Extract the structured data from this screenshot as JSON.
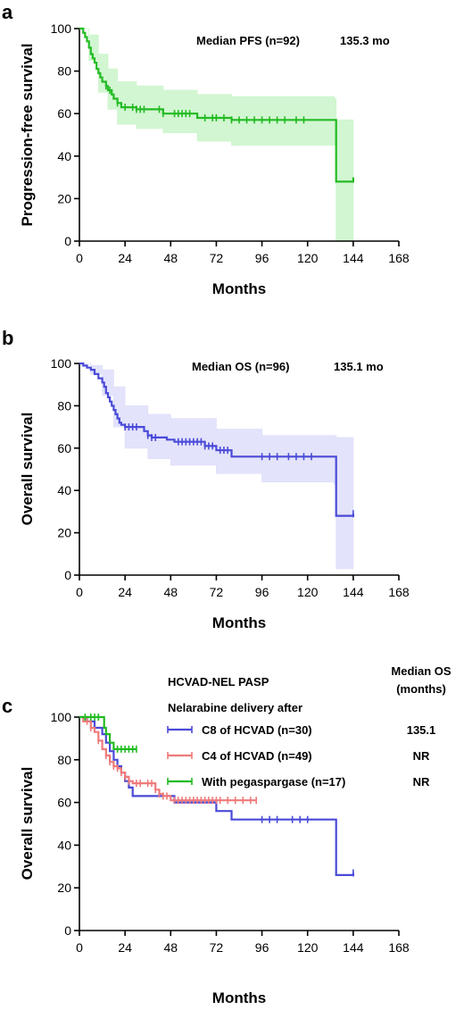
{
  "chart_data": [
    {
      "panel": "a",
      "type": "line",
      "xlabel": "Months",
      "ylabel": "Progression-free survival",
      "xlim": [
        0,
        168
      ],
      "ylim": [
        0,
        100
      ],
      "xticks": [
        0,
        24,
        48,
        72,
        96,
        120,
        144,
        168
      ],
      "yticks": [
        0,
        20,
        40,
        60,
        80,
        100
      ],
      "annotation": {
        "label": "Median  PFS (n=92)",
        "value": "135.3 mo"
      },
      "series": [
        {
          "color": "#22bb22",
          "ci_color": "#cdf5cd",
          "steps": [
            [
              0,
              100
            ],
            [
              2,
              98
            ],
            [
              3,
              96
            ],
            [
              4,
              94
            ],
            [
              5,
              91
            ],
            [
              6,
              88
            ],
            [
              7,
              86
            ],
            [
              8,
              84
            ],
            [
              9,
              81
            ],
            [
              10,
              79
            ],
            [
              11,
              77
            ],
            [
              12,
              75
            ],
            [
              14,
              73
            ],
            [
              15,
              71
            ],
            [
              17,
              69
            ],
            [
              18,
              67
            ],
            [
              20,
              65
            ],
            [
              22,
              63
            ],
            [
              30,
              62
            ],
            [
              44,
              60
            ],
            [
              62,
              58
            ],
            [
              80,
              57
            ],
            [
              100,
              57
            ],
            [
              120,
              57
            ],
            [
              134,
              57
            ],
            [
              135,
              28
            ],
            [
              144,
              30
            ]
          ],
          "ci_upper": [
            [
              0,
              100
            ],
            [
              5,
              97
            ],
            [
              10,
              88
            ],
            [
              15,
              81
            ],
            [
              20,
              75
            ],
            [
              30,
              73
            ],
            [
              44,
              71
            ],
            [
              62,
              69
            ],
            [
              80,
              68
            ],
            [
              134,
              67
            ],
            [
              135,
              57
            ],
            [
              144,
              57
            ]
          ],
          "ci_lower": [
            [
              0,
              100
            ],
            [
              5,
              85
            ],
            [
              10,
              70
            ],
            [
              15,
              62
            ],
            [
              20,
              55
            ],
            [
              30,
              53
            ],
            [
              44,
              51
            ],
            [
              62,
              47
            ],
            [
              80,
              45
            ],
            [
              134,
              45
            ],
            [
              135,
              0
            ],
            [
              144,
              0
            ]
          ],
          "censor_x": [
            14,
            16,
            20,
            24,
            28,
            30,
            32,
            34,
            42,
            44,
            50,
            52,
            54,
            56,
            58,
            66,
            70,
            72,
            76,
            80,
            84,
            88,
            92,
            96,
            100,
            104,
            108,
            114,
            118
          ]
        }
      ]
    },
    {
      "panel": "b",
      "type": "line",
      "xlabel": "Months",
      "ylabel": "Overall survival",
      "xlim": [
        0,
        168
      ],
      "ylim": [
        0,
        100
      ],
      "xticks": [
        0,
        24,
        48,
        72,
        96,
        120,
        144,
        168
      ],
      "yticks": [
        0,
        20,
        40,
        60,
        80,
        100
      ],
      "annotation": {
        "label": "Median  OS (n=96)",
        "value": "135.1 mo"
      },
      "series": [
        {
          "color": "#4a4ad8",
          "ci_color": "#e0e0fb",
          "steps": [
            [
              0,
              100
            ],
            [
              2,
              99
            ],
            [
              4,
              98
            ],
            [
              6,
              97
            ],
            [
              8,
              95
            ],
            [
              10,
              93
            ],
            [
              12,
              91
            ],
            [
              13,
              89
            ],
            [
              14,
              86
            ],
            [
              15,
              84
            ],
            [
              16,
              82
            ],
            [
              17,
              80
            ],
            [
              18,
              78
            ],
            [
              19,
              76
            ],
            [
              20,
              74
            ],
            [
              21,
              72
            ],
            [
              22,
              71
            ],
            [
              24,
              70
            ],
            [
              34,
              68
            ],
            [
              36,
              66
            ],
            [
              38,
              65
            ],
            [
              46,
              64
            ],
            [
              50,
              63
            ],
            [
              66,
              61
            ],
            [
              72,
              59
            ],
            [
              80,
              56
            ],
            [
              100,
              56
            ],
            [
              120,
              56
            ],
            [
              134,
              56
            ],
            [
              135,
              28
            ],
            [
              144,
              29
            ]
          ],
          "ci_upper": [
            [
              0,
              100
            ],
            [
              6,
              99
            ],
            [
              12,
              97
            ],
            [
              18,
              89
            ],
            [
              24,
              80
            ],
            [
              36,
              76
            ],
            [
              48,
              74
            ],
            [
              72,
              69
            ],
            [
              96,
              66
            ],
            [
              134,
              66
            ],
            [
              135,
              65
            ],
            [
              144,
              65
            ]
          ],
          "ci_lower": [
            [
              0,
              100
            ],
            [
              6,
              95
            ],
            [
              12,
              85
            ],
            [
              18,
              70
            ],
            [
              24,
              60
            ],
            [
              36,
              55
            ],
            [
              48,
              52
            ],
            [
              72,
              48
            ],
            [
              96,
              44
            ],
            [
              134,
              43
            ],
            [
              135,
              3
            ],
            [
              144,
              3
            ]
          ],
          "censor_x": [
            24,
            26,
            28,
            30,
            36,
            38,
            40,
            52,
            54,
            56,
            58,
            60,
            62,
            64,
            66,
            68,
            70,
            74,
            76,
            78,
            96,
            100,
            104,
            110,
            114,
            118,
            122,
            144
          ]
        }
      ]
    },
    {
      "panel": "c",
      "type": "line",
      "xlabel": "Months",
      "ylabel": "Overall survival",
      "xlim": [
        0,
        168
      ],
      "ylim": [
        0,
        100
      ],
      "xticks": [
        0,
        24,
        48,
        72,
        96,
        120,
        144,
        168
      ],
      "yticks": [
        0,
        20,
        40,
        60,
        80,
        100
      ],
      "legend": {
        "title_line1": "HCVAD-NEL PASP",
        "title_line2": "Nelarabine delivery after",
        "median_header_line1": "Median OS",
        "median_header_line2": "(months)"
      },
      "series": [
        {
          "name": "C8 of HCVAD (n=30)",
          "median": "135.1",
          "color": "#4a4ad8",
          "steps": [
            [
              0,
              100
            ],
            [
              4,
              98
            ],
            [
              8,
              95
            ],
            [
              12,
              92
            ],
            [
              14,
              88
            ],
            [
              16,
              84
            ],
            [
              18,
              80
            ],
            [
              20,
              77
            ],
            [
              22,
              74
            ],
            [
              24,
              70
            ],
            [
              26,
              67
            ],
            [
              28,
              63
            ],
            [
              48,
              63
            ],
            [
              50,
              60
            ],
            [
              70,
              60
            ],
            [
              72,
              56
            ],
            [
              80,
              52
            ],
            [
              100,
              52
            ],
            [
              134,
              52
            ],
            [
              135,
              26
            ],
            [
              144,
              27
            ]
          ],
          "censor_x": [
            96,
            100,
            104,
            112,
            116,
            120,
            144
          ]
        },
        {
          "name": "C4 of HCVAD (n=49)",
          "median": "NR",
          "color": "#ef7a7a",
          "steps": [
            [
              0,
              100
            ],
            [
              2,
              98
            ],
            [
              6,
              95
            ],
            [
              8,
              93
            ],
            [
              10,
              89
            ],
            [
              12,
              85
            ],
            [
              14,
              82
            ],
            [
              16,
              79
            ],
            [
              18,
              77
            ],
            [
              20,
              76
            ],
            [
              22,
              74
            ],
            [
              24,
              72
            ],
            [
              26,
              70
            ],
            [
              28,
              69
            ],
            [
              38,
              69
            ],
            [
              40,
              66
            ],
            [
              42,
              64
            ],
            [
              44,
              63
            ],
            [
              48,
              61
            ],
            [
              72,
              61
            ],
            [
              93,
              61
            ]
          ],
          "censor_x": [
            4,
            6,
            10,
            14,
            16,
            18,
            20,
            22,
            24,
            26,
            30,
            32,
            36,
            38,
            40,
            42,
            44,
            46,
            50,
            52,
            54,
            56,
            58,
            60,
            62,
            64,
            66,
            68,
            70,
            72,
            74,
            78,
            82,
            86,
            90,
            93
          ]
        },
        {
          "name": "With pegaspargase (n=17)",
          "median": "NR",
          "color": "#22bb22",
          "steps": [
            [
              0,
              100
            ],
            [
              12,
              100
            ],
            [
              13,
              95
            ],
            [
              14,
              92
            ],
            [
              16,
              88
            ],
            [
              18,
              85
            ],
            [
              30,
              85
            ]
          ],
          "censor_x": [
            3,
            6,
            8,
            10,
            20,
            22,
            24,
            26,
            28,
            30
          ]
        }
      ]
    }
  ]
}
